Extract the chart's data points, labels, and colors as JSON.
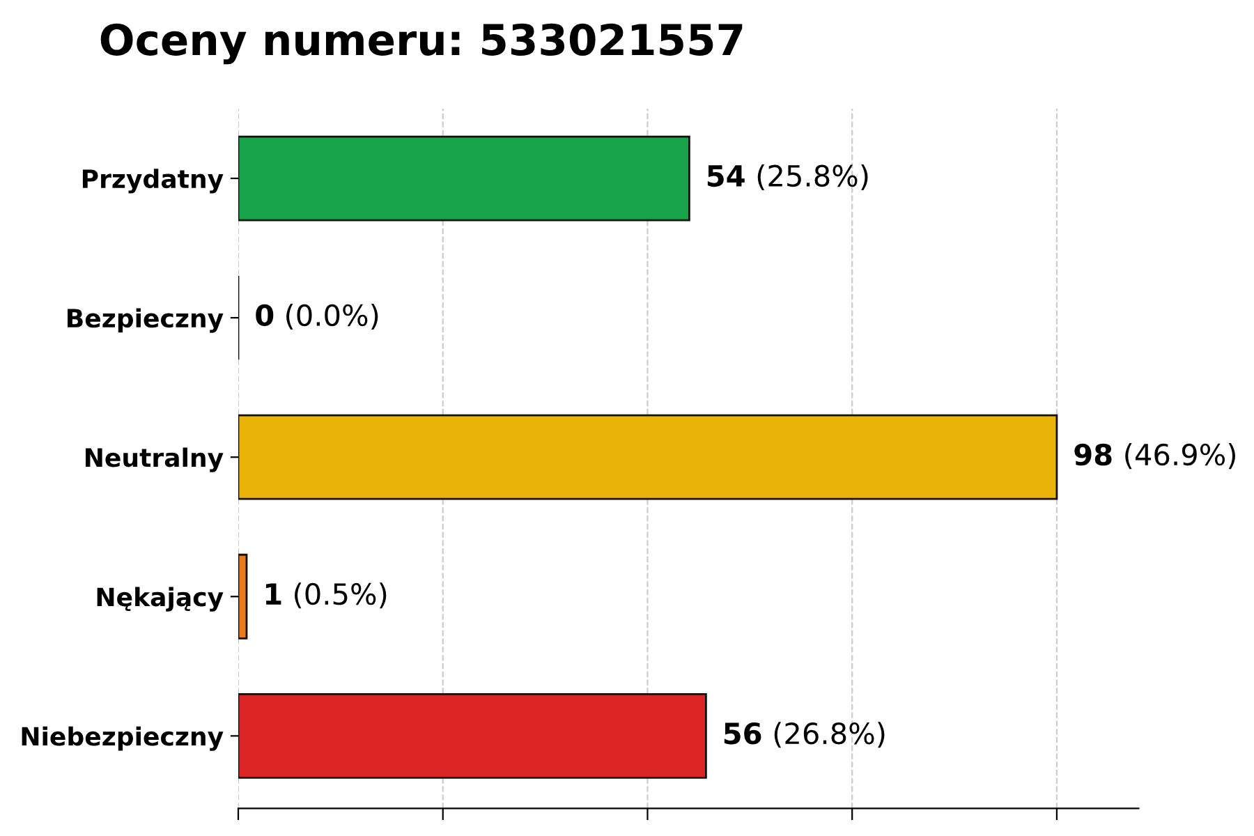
{
  "chart_data": {
    "type": "bar",
    "orientation": "horizontal",
    "title": "Oceny numeru: 533021557",
    "categories": [
      "Przydatny",
      "Bezpieczny",
      "Neutralny",
      "Nękający",
      "Niebezpieczny"
    ],
    "values": [
      54,
      0,
      98,
      1,
      56
    ],
    "colors": [
      "#16a34a",
      "#111111",
      "#eab308",
      "#ea7a1c",
      "#dc2626"
    ],
    "value_labels": [
      "54 (25.8%)",
      "0 (0.0%)",
      "98 (46.9%)",
      "1 (0.5%)",
      "56 (26.8%)"
    ],
    "xlim": [
      0,
      107.8
    ],
    "xticks": [
      {
        "value": 0,
        "label": null
      },
      {
        "value": 24.5,
        "label": null
      },
      {
        "value": 49,
        "label": null
      },
      {
        "value": 73.5,
        "label": null
      },
      {
        "value": 98,
        "label": null
      }
    ],
    "grid": "x",
    "tick_labels": "y"
  }
}
